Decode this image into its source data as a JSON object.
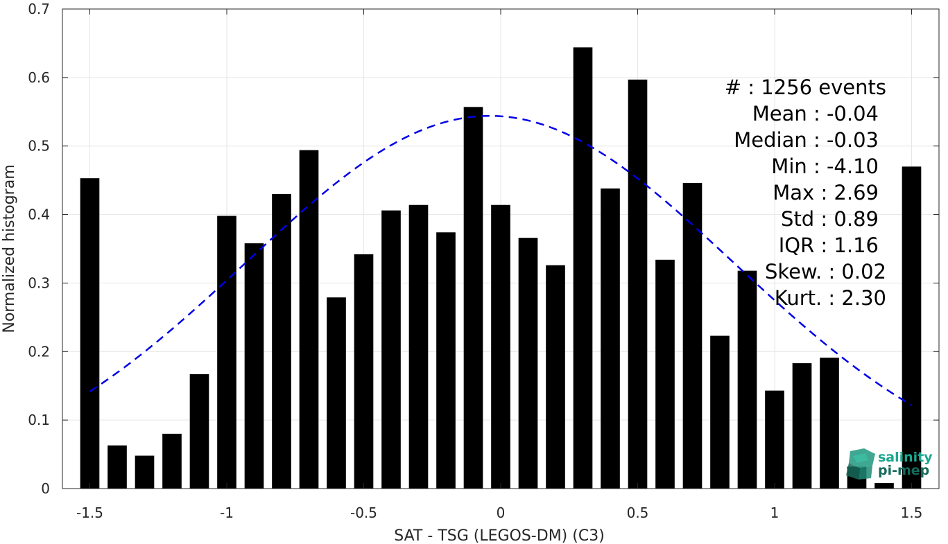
{
  "chart_data": {
    "type": "bar",
    "xlabel": "SAT - TSG (LEGOS-DM) (C3)",
    "ylabel": "Normalized histogram",
    "xlim": [
      -1.6,
      1.6
    ],
    "ylim": [
      0,
      0.7
    ],
    "xticks": [
      -1.5,
      -1,
      -0.5,
      0,
      0.5,
      1,
      1.5
    ],
    "xtick_labels": [
      "-1.5",
      "-1",
      "-0.5",
      "0",
      "0.5",
      "1",
      "1.5"
    ],
    "yticks": [
      0,
      0.1,
      0.2,
      0.3,
      0.4,
      0.5,
      0.6,
      0.7
    ],
    "ytick_labels": [
      "0",
      "0.1",
      "0.2",
      "0.3",
      "0.4",
      "0.5",
      "0.6",
      "0.7"
    ],
    "grid": true,
    "bar_width": 0.07,
    "bars": {
      "x": [
        -1.5,
        -1.4,
        -1.3,
        -1.2,
        -1.1,
        -1.0,
        -0.9,
        -0.8,
        -0.7,
        -0.6,
        -0.5,
        -0.4,
        -0.3,
        -0.2,
        -0.1,
        0.0,
        0.1,
        0.2,
        0.3,
        0.4,
        0.5,
        0.6,
        0.7,
        0.8,
        0.9,
        1.0,
        1.1,
        1.2,
        1.3,
        1.4,
        1.5
      ],
      "values": [
        0.453,
        0.063,
        0.048,
        0.08,
        0.167,
        0.398,
        0.358,
        0.43,
        0.494,
        0.279,
        0.342,
        0.406,
        0.414,
        0.374,
        0.557,
        0.414,
        0.366,
        0.326,
        0.644,
        0.438,
        0.597,
        0.334,
        0.446,
        0.223,
        0.318,
        0.143,
        0.183,
        0.191,
        0.032,
        0.008,
        0.47
      ],
      "color": "#000000"
    },
    "fit_curve": {
      "style": "dashed",
      "color": "#0000e6",
      "mean": -0.04,
      "std": 0.89,
      "peak": 0.544,
      "x_range": [
        -1.5,
        1.5
      ]
    },
    "stats": {
      "count": "#  : 1256 events",
      "mean": "Mean : -0.04",
      "median": "Median : -0.03",
      "min": "Min : -4.10",
      "max": "Max : 2.69",
      "std": "Std : 0.89",
      "iqr": "IQR : 1.16",
      "skew": "Skew. : 0.02",
      "kurt": "Kurt. : 2.30"
    }
  },
  "logo": {
    "line1": "salinity",
    "line2": "pi-mep",
    "color": "#1aa88f"
  }
}
